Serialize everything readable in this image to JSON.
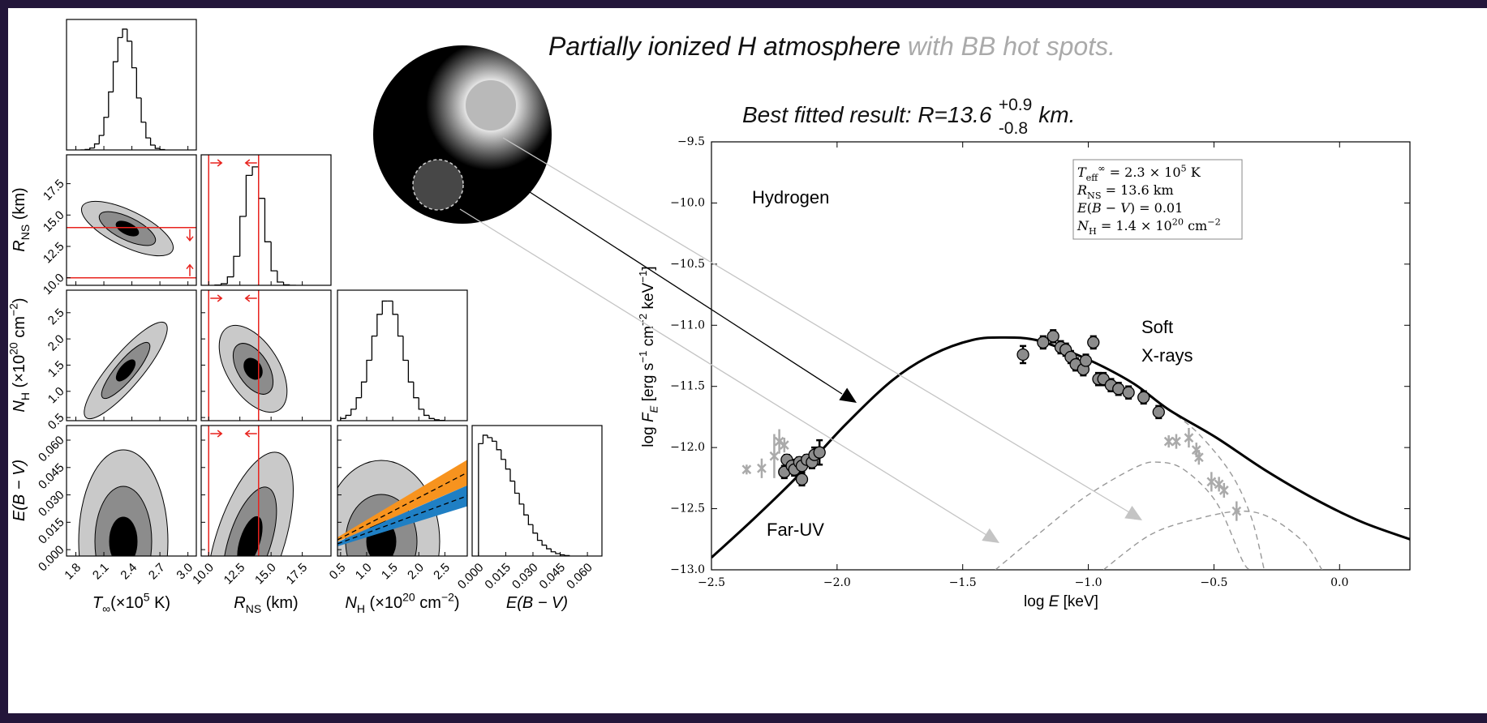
{
  "slide": {
    "title": "Partially ionized H atmosphere",
    "title_extra": " with BB hot spots.",
    "result": "Best fitted result: R=13.6",
    "upper": "+0.9",
    "lower": "-0.8",
    "unit": "km."
  },
  "chart_data": [
    {
      "type": "corner",
      "hist_color": "#000000",
      "contour_colors": [
        "#c9c9c9",
        "#8c8c8c",
        "#000000"
      ],
      "band_colors": [
        "#f7931e",
        "#1f7fc4"
      ],
      "variables": [
        {
          "label": [
            "T",
            "∞",
            "(×10",
            "5",
            " K)"
          ],
          "lim": [
            1.7,
            3.09
          ],
          "ticks": [
            1.8,
            2.1,
            2.4,
            2.7,
            {
              "value": 3,
              "label": "3.0"
            }
          ],
          "bins": [
            1.85,
            1.9,
            1.95,
            2.0,
            2.05,
            2.1,
            2.15,
            2.2,
            2.25,
            2.3,
            2.35,
            2.4,
            2.45,
            2.5,
            2.55,
            2.6,
            2.65,
            2.7,
            2.75
          ],
          "counts": [
            0.0,
            0.004,
            0.016,
            0.05,
            0.12,
            0.27,
            0.48,
            0.73,
            0.93,
            1.0,
            0.9,
            0.68,
            0.43,
            0.23,
            0.1,
            0.04,
            0.013,
            0.003
          ]
        },
        {
          "label": [
            "R",
            "NS",
            " (km)"
          ],
          "lim": [
            9.4,
            19.8
          ],
          "ticks": [
            {
              "value": 10,
              "label": "10.0"
            },
            12.5,
            {
              "value": 15,
              "label": "15.0"
            },
            17.5
          ],
          "bins": [
            10.5,
            11.0,
            11.5,
            12.0,
            12.5,
            13.0,
            13.5,
            14.0,
            14.5,
            15.0,
            15.5,
            16.0,
            16.5,
            17.0
          ],
          "counts": [
            0.002,
            0.013,
            0.07,
            0.24,
            0.57,
            0.91,
            0.98,
            0.72,
            0.36,
            0.12,
            0.027,
            0.004,
            0.0
          ],
          "limits": [
            10,
            14
          ],
          "limit_color": "#e8231e"
        },
        {
          "label": [
            "N",
            "H",
            " (×10",
            "20",
            " cm",
            "−2",
            ")"
          ],
          "lim": [
            0.44,
            2.93
          ],
          "ticks": [
            0.5,
            {
              "value": 1,
              "label": "1.0"
            },
            1.5,
            {
              "value": 2,
              "label": "2.0"
            },
            2.5
          ],
          "bins": [
            0.5,
            0.6,
            0.7,
            0.8,
            0.9,
            1.0,
            1.1,
            1.2,
            1.3,
            1.4,
            1.5,
            1.6,
            1.7,
            1.8,
            1.9,
            2.0,
            2.1,
            2.2,
            2.3,
            2.4,
            2.5
          ],
          "counts": [
            0.018,
            0.044,
            0.095,
            0.19,
            0.32,
            0.5,
            0.7,
            0.88,
            0.99,
            0.99,
            0.88,
            0.7,
            0.5,
            0.32,
            0.19,
            0.095,
            0.044,
            0.018,
            0.007,
            0.002
          ]
        },
        {
          "label": [
            "E(B − V)"
          ],
          "lim": [
            -0.0035,
            0.068
          ],
          "ticks": [
            {
              "value": 0,
              "label": "0.000"
            },
            0.015,
            {
              "value": 0.03,
              "label": "0.030"
            },
            0.045,
            {
              "value": 0.06,
              "label": "0.060"
            }
          ],
          "bins": [
            0,
            0.0025,
            0.005,
            0.0075,
            0.01,
            0.0125,
            0.015,
            0.0175,
            0.02,
            0.0225,
            0.025,
            0.0275,
            0.03,
            0.0325,
            0.035,
            0.0375,
            0.04,
            0.0425,
            0.045,
            0.0475,
            0.05
          ],
          "counts": [
            0.93,
            1.0,
            0.98,
            0.95,
            0.88,
            0.8,
            0.72,
            0.62,
            0.52,
            0.43,
            0.34,
            0.26,
            0.19,
            0.13,
            0.09,
            0.06,
            0.035,
            0.02,
            0.01,
            0.004
          ]
        }
      ]
    },
    {
      "type": "line",
      "xlim": [
        -2.5,
        0.28
      ],
      "ylim": [
        -13,
        -9.5
      ],
      "xticks": [
        {
          "value": -2.5,
          "label": "−2.5"
        },
        {
          "value": -2,
          "label": "−2.0"
        },
        {
          "value": -1.5,
          "label": "−1.5"
        },
        {
          "value": -1,
          "label": "−1.0"
        },
        {
          "value": -0.5,
          "label": "−0.5"
        },
        {
          "value": 0,
          "label": "0.0"
        }
      ],
      "yticks": [
        {
          "value": -9.5,
          "label": "−9.5"
        },
        {
          "value": -10,
          "label": "−10.0"
        },
        {
          "value": -10.5,
          "label": "−10.5"
        },
        {
          "value": -11,
          "label": "−11.0"
        },
        {
          "value": -11.5,
          "label": "−11.5"
        },
        {
          "value": -12,
          "label": "−12.0"
        },
        {
          "value": -12.5,
          "label": "−12.5"
        },
        {
          "value": -13,
          "label": "−13.0"
        }
      ],
      "xlabel": [
        "log ",
        "E",
        " [keV]"
      ],
      "ylabel": [
        "log ",
        "F",
        "E",
        " [erg s",
        "−1",
        " cm",
        "−2",
        " keV",
        "−1",
        "]"
      ],
      "model": {
        "color": "#000000",
        "x": [
          -2.5,
          -2.33,
          -2.15,
          -1.97,
          -1.78,
          -1.62,
          -1.46,
          -1.33,
          -1.21,
          -1.07,
          -0.94,
          -0.81,
          -0.68,
          -0.49,
          -0.3,
          -0.1,
          0.09,
          0.28
        ],
        "y": [
          -12.9,
          -12.58,
          -12.22,
          -11.82,
          -11.45,
          -11.24,
          -11.12,
          -11.1,
          -11.12,
          -11.22,
          -11.34,
          -11.49,
          -11.69,
          -11.92,
          -12.18,
          -12.42,
          -12.61,
          -12.75
        ]
      },
      "components": {
        "color": "#999999",
        "linestyle": "dashed",
        "lines": [
          {
            "x": [
              -1.37,
              -1.2,
              -1.01,
              -0.81,
              -0.72,
              -0.62,
              -0.49,
              -0.39,
              -0.36
            ],
            "y": [
              -13.0,
              -12.71,
              -12.4,
              -12.16,
              -12.12,
              -12.18,
              -12.45,
              -12.91,
              -13.0
            ]
          },
          {
            "x": [
              -0.94,
              -0.75,
              -0.56,
              -0.39,
              -0.27,
              -0.14,
              -0.07
            ],
            "y": [
              -13.0,
              -12.71,
              -12.58,
              -12.52,
              -12.58,
              -12.78,
              -13.0
            ]
          },
          {
            "x": [
              -0.68,
              -0.56,
              -0.43,
              -0.35,
              -0.3
            ],
            "y": [
              -11.69,
              -11.89,
              -12.22,
              -12.58,
              -13.0
            ]
          }
        ]
      },
      "points": {
        "color": "#8c8c8c",
        "x": [
          -2.21,
          -2.2,
          -2.18,
          -2.17,
          -2.15,
          -2.14,
          -2.14,
          -2.12,
          -2.1,
          -2.09,
          -2.07,
          -1.26,
          -1.18,
          -1.14,
          -1.11,
          -1.09,
          -1.07,
          -1.05,
          -1.02,
          -1.01,
          -0.98,
          -0.96,
          -0.94,
          -0.91,
          -0.88,
          -0.84,
          -0.78,
          -0.72
        ],
        "y": [
          -12.2,
          -12.1,
          -12.15,
          -12.18,
          -12.12,
          -12.26,
          -12.15,
          -12.1,
          -12.12,
          -12.06,
          -12.04,
          -11.24,
          -11.14,
          -11.09,
          -11.18,
          -11.2,
          -11.26,
          -11.32,
          -11.36,
          -11.29,
          -11.14,
          -11.44,
          -11.44,
          -11.49,
          -11.52,
          -11.55,
          -11.59,
          -11.71
        ],
        "errors": [
          0.05,
          0.04,
          0.05,
          0.05,
          0.04,
          0.05,
          0.05,
          0.04,
          0.05,
          0.06,
          0.1,
          0.07,
          0.05,
          0.05,
          0.05,
          0.05,
          0.05,
          0.05,
          0.05,
          0.05,
          0.05,
          0.05,
          0.05,
          0.05,
          0.05,
          0.05,
          0.05,
          0.05
        ]
      },
      "excluded": {
        "color": "#aaaaaa",
        "x": [
          -2.36,
          -2.3,
          -2.25,
          -2.23,
          -2.21,
          -0.68,
          -0.65,
          -0.6,
          -0.57,
          -0.56,
          -0.51,
          -0.48,
          -0.46,
          -0.41
        ],
        "y": [
          -12.18,
          -12.17,
          -12.07,
          -11.95,
          -11.98,
          -11.95,
          -11.95,
          -11.92,
          -12.02,
          -12.08,
          -12.28,
          -12.3,
          -12.35,
          -12.52
        ],
        "errors": [
          0.04,
          0.08,
          0.18,
          0.1,
          0.06,
          0.05,
          0.06,
          0.08,
          0.06,
          0.06,
          0.08,
          0.06,
          0.06,
          0.08
        ]
      },
      "annotations": [
        "Hydrogen",
        "Far-UV",
        "Soft",
        "X-rays"
      ],
      "legend_text": [
        [
          "T",
          "eff",
          "∞",
          " = 2.3 × 10",
          "5",
          " K"
        ],
        [
          "R",
          "NS",
          " = 13.6 km"
        ],
        [
          "E",
          "(",
          "B",
          " − ",
          "V",
          ") = 0.01"
        ],
        [
          "N",
          "H",
          " = 1.4 × 10",
          "20",
          " cm",
          "−2"
        ]
      ]
    }
  ]
}
